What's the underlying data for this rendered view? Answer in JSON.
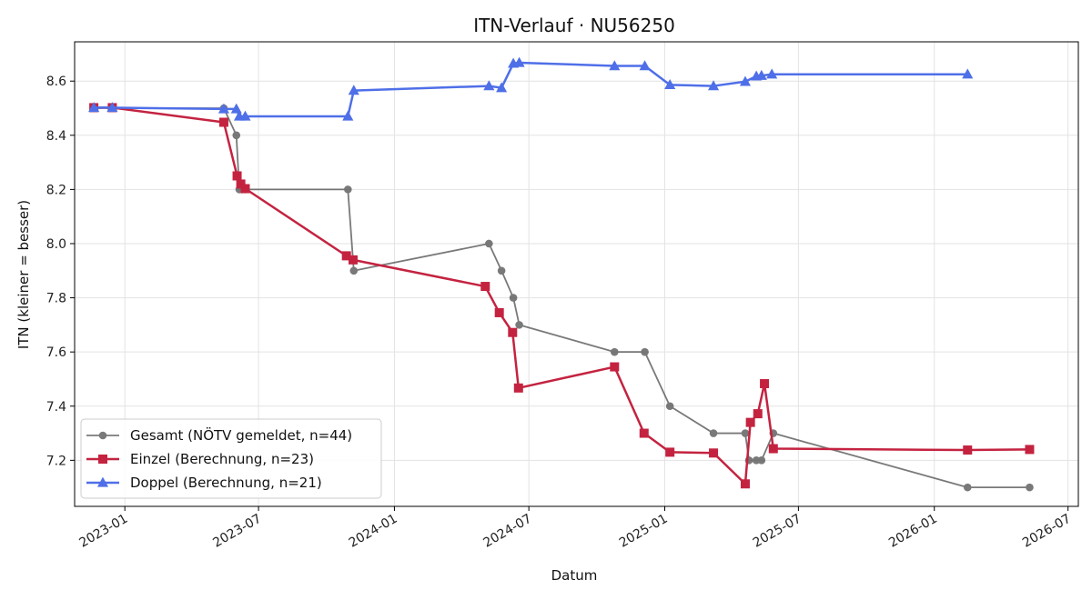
{
  "chart_data": {
    "type": "line",
    "title": "ITN-Verlauf · NU56250",
    "xlabel": "Datum",
    "ylabel": "ITN  (kleiner = besser)",
    "x_type": "date",
    "xlim": [
      "2022-10-25",
      "2026-07-15"
    ],
    "ylim": [
      7.03,
      8.745
    ],
    "x_ticks": [
      "2023-01",
      "2023-07",
      "2024-01",
      "2024-07",
      "2025-01",
      "2025-07",
      "2026-01",
      "2026-07"
    ],
    "y_ticks": [
      7.2,
      7.4,
      7.6,
      7.8,
      8.0,
      8.2,
      8.4,
      8.6
    ],
    "grid": true,
    "legend_position": "bottom-left",
    "series": [
      {
        "name": "Gesamt (NÖTV gemeldet, n=44)",
        "color": "#4d4d4d",
        "marker": "circle",
        "points": [
          [
            "2022-11-20",
            8.5
          ],
          [
            "2022-12-15",
            8.5
          ],
          [
            "2023-05-15",
            8.5
          ],
          [
            "2023-06-01",
            8.4
          ],
          [
            "2023-06-05",
            8.2
          ],
          [
            "2023-06-09",
            8.2
          ],
          [
            "2023-06-13",
            8.2
          ],
          [
            "2023-10-30",
            8.2
          ],
          [
            "2023-11-07",
            7.9
          ],
          [
            "2024-05-08",
            8.0
          ],
          [
            "2024-05-25",
            7.9
          ],
          [
            "2024-06-10",
            7.8
          ],
          [
            "2024-06-18",
            7.7
          ],
          [
            "2024-10-25",
            7.6
          ],
          [
            "2024-12-05",
            7.6
          ],
          [
            "2025-01-08",
            7.4
          ],
          [
            "2025-03-08",
            7.3
          ],
          [
            "2025-04-20",
            7.3
          ],
          [
            "2025-04-25",
            7.2
          ],
          [
            "2025-05-05",
            7.2
          ],
          [
            "2025-05-12",
            7.2
          ],
          [
            "2025-05-28",
            7.3
          ],
          [
            "2026-02-15",
            7.1
          ],
          [
            "2026-05-10",
            7.1
          ]
        ]
      },
      {
        "name": "Einzel (Berechnung, n=23)",
        "color": "#c42340",
        "marker": "square",
        "points": [
          [
            "2022-11-20",
            8.502
          ],
          [
            "2022-12-15",
            8.502
          ],
          [
            "2023-05-15",
            8.448
          ],
          [
            "2023-06-02",
            8.25
          ],
          [
            "2023-06-07",
            8.22
          ],
          [
            "2023-06-13",
            8.203
          ],
          [
            "2023-10-28",
            7.955
          ],
          [
            "2023-11-06",
            7.94
          ],
          [
            "2024-05-03",
            7.842
          ],
          [
            "2024-05-22",
            7.745
          ],
          [
            "2024-06-09",
            7.672
          ],
          [
            "2024-06-17",
            7.467
          ],
          [
            "2024-10-25",
            7.545
          ],
          [
            "2024-12-04",
            7.3
          ],
          [
            "2025-01-08",
            7.23
          ],
          [
            "2025-03-08",
            7.227
          ],
          [
            "2025-04-20",
            7.113
          ],
          [
            "2025-04-27",
            7.34
          ],
          [
            "2025-05-07",
            7.372
          ],
          [
            "2025-05-16",
            7.483
          ],
          [
            "2025-05-28",
            7.243
          ],
          [
            "2026-02-15",
            7.238
          ],
          [
            "2026-05-10",
            7.24
          ]
        ]
      },
      {
        "name": "Doppel (Berechnung, n=21)",
        "color": "#4f6fe8",
        "marker": "triangle",
        "points": [
          [
            "2022-11-20",
            8.502
          ],
          [
            "2022-12-15",
            8.502
          ],
          [
            "2023-05-15",
            8.497
          ],
          [
            "2023-06-01",
            8.497
          ],
          [
            "2023-06-05",
            8.47
          ],
          [
            "2023-06-13",
            8.47
          ],
          [
            "2023-10-30",
            8.47
          ],
          [
            "2023-11-07",
            8.565
          ],
          [
            "2024-05-08",
            8.582
          ],
          [
            "2024-05-25",
            8.575
          ],
          [
            "2024-06-10",
            8.665
          ],
          [
            "2024-06-18",
            8.668
          ],
          [
            "2024-10-25",
            8.656
          ],
          [
            "2024-12-05",
            8.656
          ],
          [
            "2025-01-08",
            8.586
          ],
          [
            "2025-03-08",
            8.582
          ],
          [
            "2025-04-20",
            8.598
          ],
          [
            "2025-05-05",
            8.618
          ],
          [
            "2025-05-12",
            8.62
          ],
          [
            "2025-05-26",
            8.625
          ],
          [
            "2026-02-15",
            8.625
          ]
        ]
      }
    ]
  }
}
